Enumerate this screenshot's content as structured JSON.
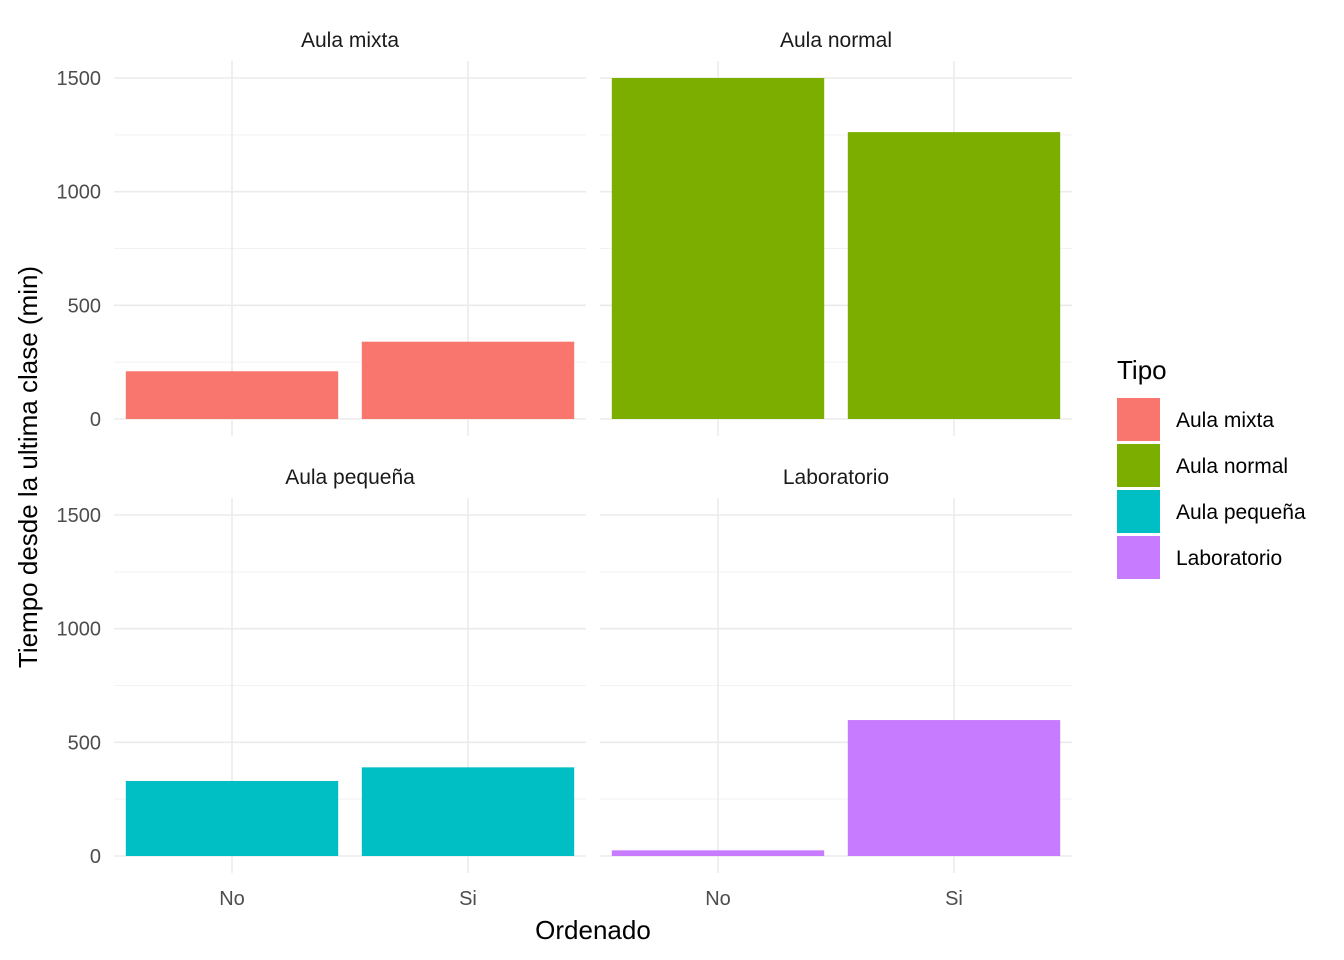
{
  "chart_data": {
    "type": "bar",
    "facet_by": "Tipo",
    "x_categories": [
      "No",
      "Si"
    ],
    "xlabel": "Ordenado",
    "ylabel": "Tiempo desde la ultima clase (min)",
    "ylim": [
      0,
      1500
    ],
    "y_ticks": [
      0,
      500,
      1000,
      1500
    ],
    "grid": true,
    "legend": {
      "title": "Tipo",
      "position": "right",
      "entries": [
        {
          "label": "Aula mixta",
          "color": "#F8766D"
        },
        {
          "label": "Aula normal",
          "color": "#7CAE00"
        },
        {
          "label": "Aula pequeña",
          "color": "#00BFC4"
        },
        {
          "label": "Laboratorio",
          "color": "#C77CFF"
        }
      ]
    },
    "facets": [
      {
        "title": "Aula mixta",
        "color": "#F8766D",
        "values": [
          210,
          340
        ]
      },
      {
        "title": "Aula normal",
        "color": "#7CAE00",
        "values": [
          1500,
          1262
        ]
      },
      {
        "title": "Aula pequeña",
        "color": "#00BFC4",
        "values": [
          330,
          390
        ]
      },
      {
        "title": "Laboratorio",
        "color": "#C77CFF",
        "values": [
          25,
          598
        ]
      }
    ]
  }
}
